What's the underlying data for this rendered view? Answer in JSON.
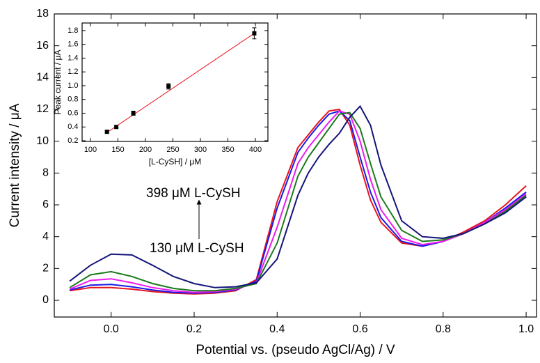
{
  "chart_data": [
    {
      "type": "line",
      "x_label": "Potential vs. (pseudo AgCl/Ag) / V",
      "y_label": "Current intensity / μA",
      "annotations": [
        "398 μM L-CySH",
        "130 μM L-CySH"
      ],
      "x": [
        -0.1,
        -0.05,
        0,
        0.05,
        0.1,
        0.15,
        0.2,
        0.25,
        0.3,
        0.35,
        0.4,
        0.45,
        0.475,
        0.5,
        0.525,
        0.55,
        0.575,
        0.6,
        0.625,
        0.65,
        0.7,
        0.75,
        0.8,
        0.85,
        0.9,
        0.95,
        1.0
      ],
      "series": [
        {
          "color": "#e8141e",
          "values": [
            0.6,
            0.8,
            0.8,
            0.7,
            0.55,
            0.45,
            0.4,
            0.45,
            0.6,
            1.3,
            6.2,
            9.6,
            10.4,
            11.2,
            11.9,
            12.0,
            11.0,
            8.5,
            6.3,
            4.9,
            3.6,
            3.4,
            3.7,
            4.3,
            5.0,
            6.0,
            7.2
          ]
        },
        {
          "color": "#1a1ae6",
          "values": [
            0.65,
            0.95,
            1.0,
            0.85,
            0.65,
            0.5,
            0.45,
            0.5,
            0.65,
            1.2,
            5.8,
            9.3,
            10.2,
            11.0,
            11.7,
            11.9,
            11.3,
            9.0,
            6.8,
            5.2,
            3.7,
            3.4,
            3.7,
            4.2,
            4.9,
            5.8,
            6.8
          ]
        },
        {
          "color": "#ee1aee",
          "values": [
            0.7,
            1.25,
            1.35,
            1.1,
            0.8,
            0.6,
            0.5,
            0.55,
            0.7,
            1.1,
            4.6,
            8.6,
            9.6,
            10.4,
            11.2,
            11.9,
            11.7,
            10.0,
            7.6,
            5.7,
            3.9,
            3.5,
            3.7,
            4.2,
            4.9,
            5.7,
            6.7
          ]
        },
        {
          "color": "#1a7a1a",
          "values": [
            0.8,
            1.6,
            1.8,
            1.5,
            1.05,
            0.75,
            0.6,
            0.6,
            0.75,
            1.05,
            3.6,
            7.8,
            9.0,
            9.9,
            10.8,
            11.7,
            11.8,
            10.8,
            8.6,
            6.5,
            4.4,
            3.7,
            3.8,
            4.2,
            4.8,
            5.6,
            6.6
          ]
        },
        {
          "color": "#14147a",
          "values": [
            1.2,
            2.2,
            2.9,
            2.85,
            2.2,
            1.5,
            1.05,
            0.8,
            0.85,
            1.1,
            2.6,
            6.6,
            8.0,
            9.0,
            9.8,
            10.5,
            11.5,
            12.2,
            11.0,
            8.5,
            5.0,
            4.0,
            3.9,
            4.2,
            4.8,
            5.5,
            6.5
          ]
        }
      ],
      "xlim": [
        -0.137,
        1.025
      ],
      "xticks": [
        {
          "value": 0,
          "label": "0.0"
        },
        0.2,
        0.4,
        0.6,
        0.8,
        {
          "value": 1,
          "label": "1.0"
        }
      ],
      "ylim": [
        -1.05,
        18
      ],
      "yticks": [
        0,
        2,
        4,
        6,
        8,
        10,
        12,
        14,
        16,
        18
      ]
    },
    {
      "type": "scatter",
      "x_label": "[L-CySH] / μM",
      "y_label": "Peak current / μA",
      "x": [
        130,
        147,
        178,
        242,
        398
      ],
      "values": [
        0.33,
        0.4,
        0.6,
        0.99,
        1.76
      ],
      "errors": [
        0.02,
        0.02,
        0.03,
        0.04,
        0.08
      ],
      "color": "#000000",
      "fit": {
        "x": [
          130,
          400
        ],
        "values": [
          0.32,
          1.77
        ],
        "color": "#e8141e"
      },
      "xlim": [
        84.8,
        422.8
      ],
      "xticks": [
        100,
        150,
        200,
        250,
        300,
        350,
        400
      ],
      "ylim": [
        0.19,
        1.91
      ],
      "yticks": [
        0.2,
        0.4,
        0.6,
        0.8,
        {
          "value": 1,
          "label": "1.0"
        },
        1.2,
        1.4,
        1.6,
        1.8
      ]
    }
  ]
}
